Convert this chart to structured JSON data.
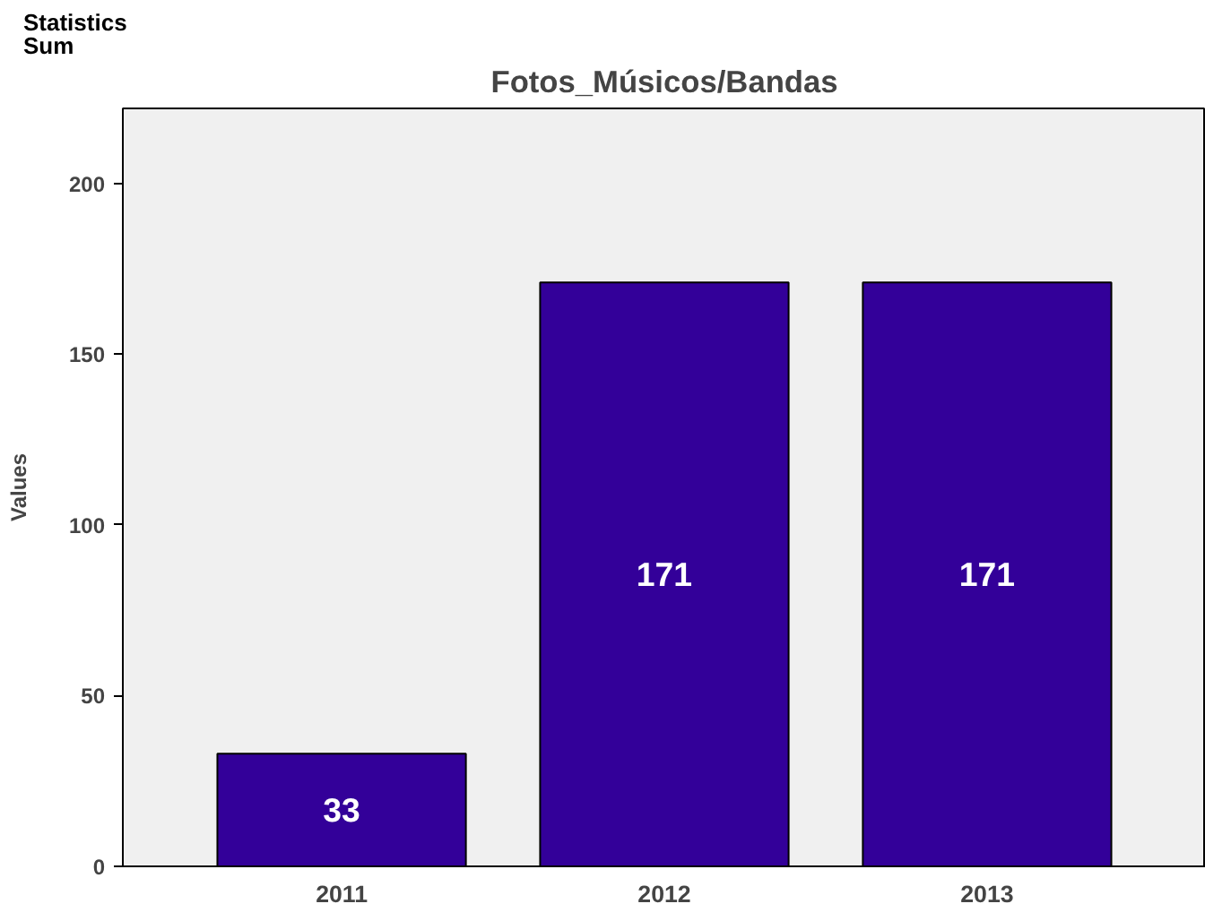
{
  "chart_data": {
    "type": "bar",
    "title": "Fotos_Músicos/Bandas",
    "ylabel": "Values",
    "annotations": [
      "Statistics\nSum"
    ],
    "categories": [
      "2011",
      "2012",
      "2013"
    ],
    "values": [
      33,
      171,
      171
    ],
    "color": "#330099",
    "ylim": [
      0,
      222
    ],
    "yticks": [
      0,
      50,
      100,
      150,
      200
    ],
    "grid": false,
    "data_labels": true
  }
}
